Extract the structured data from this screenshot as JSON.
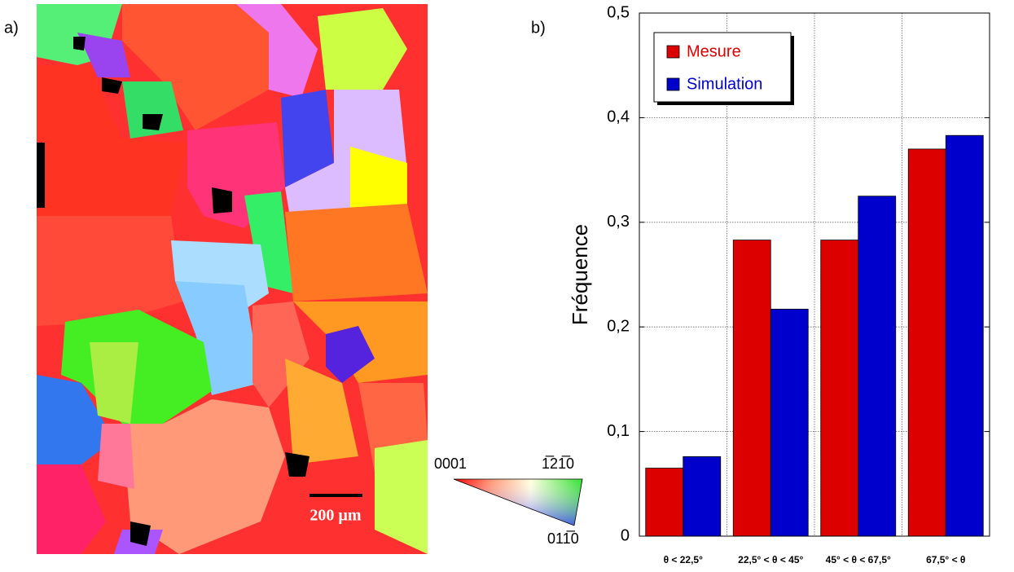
{
  "figure": {
    "panel_a": "a)",
    "panel_b": "b)",
    "scale_bar": "200 µm",
    "key_top_left": "0001",
    "key_top_right": "1̅21̅0",
    "key_bottom": "011̅0"
  },
  "chart_data": {
    "type": "bar",
    "y_label": "Fréquence",
    "categories": [
      "θ < 22,5°",
      "22,5° < θ < 45°",
      "45° < θ < 67,5°",
      "67,5° < θ"
    ],
    "series": [
      {
        "name": "Mesure",
        "color": "#dd0000",
        "values": [
          0.065,
          0.283,
          0.283,
          0.37
        ]
      },
      {
        "name": "Simulation",
        "color": "#0000cc",
        "values": [
          0.076,
          0.217,
          0.325,
          0.383
        ]
      }
    ],
    "ylim": [
      0,
      0.5
    ],
    "yticks": [
      0,
      {
        "value": 0.1,
        "label": "0,1"
      },
      {
        "value": 0.2,
        "label": "0,2"
      },
      {
        "value": 0.3,
        "label": "0,3"
      },
      {
        "value": 0.4,
        "label": "0,4"
      },
      {
        "value": 0.5,
        "label": "0,5"
      }
    ],
    "grid": true,
    "legend": "upper-left"
  }
}
